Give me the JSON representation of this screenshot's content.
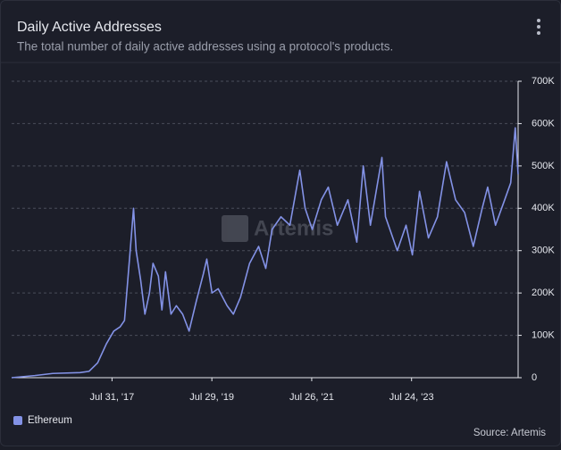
{
  "chart_data": {
    "type": "line",
    "title": "Daily Active Addresses",
    "subtitle": "The total number of daily active addresses using a protocol's products.",
    "watermark": "Artemis",
    "source": "Source: Artemis",
    "x": [
      "2015-07-30",
      "2016-01-15",
      "2016-05-25",
      "2016-12-10",
      "2017-02-13",
      "2017-04-17",
      "2017-06-20",
      "2017-08-13",
      "2017-09-28",
      "2017-10-30",
      "2017-12-08",
      "2018-01-04",
      "2018-01-23",
      "2018-02-25",
      "2018-03-28",
      "2018-04-30",
      "2018-05-26",
      "2018-07-04",
      "2018-07-30",
      "2018-08-25",
      "2018-10-04",
      "2018-11-12",
      "2018-12-28",
      "2019-02-13",
      "2019-04-06",
      "2019-05-28",
      "2019-06-22",
      "2019-07-30",
      "2019-09-13",
      "2019-11-17",
      "2020-01-02",
      "2020-02-23",
      "2020-04-29",
      "2020-07-04",
      "2020-08-25",
      "2020-10-10",
      "2020-12-14",
      "2021-02-17",
      "2021-04-30",
      "2021-06-08",
      "2021-07-30",
      "2021-10-04",
      "2021-11-24",
      "2022-01-29",
      "2022-04-16",
      "2022-06-20",
      "2022-08-06",
      "2022-09-27",
      "2022-12-20",
      "2023-01-15",
      "2023-04-11",
      "2023-06-14",
      "2023-07-30",
      "2023-09-20",
      "2023-11-24",
      "2024-01-29",
      "2024-04-04",
      "2024-06-09",
      "2024-08-14",
      "2024-10-16",
      "2024-12-20",
      "2025-01-29",
      "2025-03-27",
      "2025-06-02",
      "2025-07-16",
      "2025-08-18",
      "2025-09-08"
    ],
    "series": [
      {
        "name": "Ethereum",
        "color": "#8392e6",
        "values": [
          0,
          5000,
          10000,
          12000,
          15000,
          35000,
          80000,
          110000,
          120000,
          135000,
          290000,
          400000,
          300000,
          230000,
          150000,
          200000,
          270000,
          240000,
          160000,
          250000,
          150000,
          170000,
          150000,
          110000,
          180000,
          245000,
          280000,
          200000,
          210000,
          170000,
          150000,
          190000,
          270000,
          310000,
          258000,
          350000,
          380000,
          360000,
          490000,
          400000,
          350000,
          420000,
          450000,
          360000,
          420000,
          320000,
          500000,
          360000,
          520000,
          380000,
          300000,
          360000,
          290000,
          440000,
          330000,
          380000,
          510000,
          420000,
          390000,
          310000,
          400000,
          450000,
          360000,
          420000,
          460000,
          590000,
          480000
        ]
      }
    ],
    "xlim": [
      "2015-07-30",
      "2025-09-08"
    ],
    "xticks": [
      {
        "value": "2017-07-31",
        "label": "Jul 31, '17"
      },
      {
        "value": "2019-07-29",
        "label": "Jul 29, '19"
      },
      {
        "value": "2021-07-26",
        "label": "Jul 26, '21"
      },
      {
        "value": "2023-07-24",
        "label": "Jul 24, '23"
      }
    ],
    "ylim": [
      0,
      700000
    ],
    "yticks": [
      0,
      {
        "value": 100000,
        "label": "100K"
      },
      {
        "value": 200000,
        "label": "200K"
      },
      {
        "value": 300000,
        "label": "300K"
      },
      {
        "value": 400000,
        "label": "400K"
      },
      {
        "value": 500000,
        "label": "500K"
      },
      {
        "value": 600000,
        "label": "600K"
      },
      {
        "value": 700000,
        "label": "700K"
      }
    ],
    "grid": true,
    "y_axis_side": "right",
    "legend": "bottom-left"
  }
}
